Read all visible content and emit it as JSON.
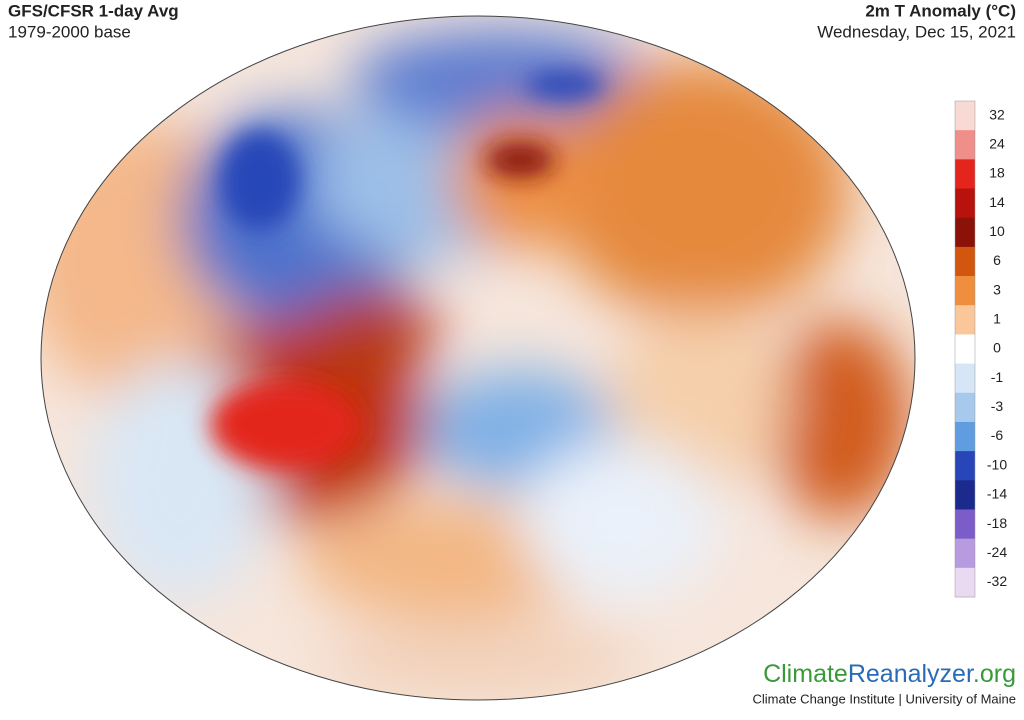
{
  "header": {
    "title": "GFS/CFSR 1-day Avg",
    "subtitle": "1979-2000 base",
    "variable": "2m T Anomaly (°C)",
    "date": "Wednesday, Dec 15, 2021"
  },
  "legend": {
    "levels": [
      32,
      24,
      18,
      14,
      10,
      6,
      3,
      1,
      0,
      -1,
      -3,
      -6,
      -10,
      -14,
      -18,
      -24,
      -32
    ],
    "colors": [
      "#f9d9d4",
      "#f08f8a",
      "#e3251d",
      "#b8120c",
      "#8a1208",
      "#d2560e",
      "#ef8f3d",
      "#f9c79a",
      "#ffffff",
      "#d6e6f6",
      "#a6c9ec",
      "#5f9de0",
      "#2846b8",
      "#1c2a8e",
      "#7c5cc8",
      "#b79ae0",
      "#e9daf2"
    ]
  },
  "logo": {
    "parts": [
      "Climate",
      "Reanalyzer",
      ".org"
    ],
    "credit": "Climate Change Institute | University of Maine"
  }
}
